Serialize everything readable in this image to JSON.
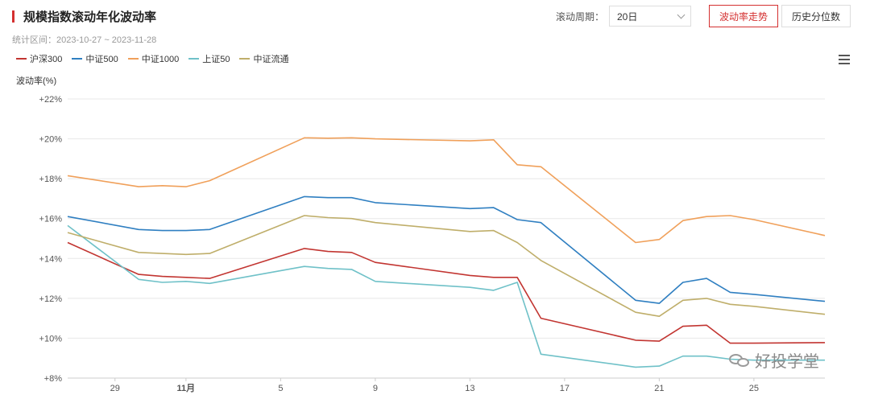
{
  "header": {
    "title": "规模指数滚动年化波动率",
    "subtitle": "统计区间：2023-10-27 ~ 2023-11-28"
  },
  "controls": {
    "period_label": "滚动周期：",
    "period_value": "20日",
    "trend_button": "波动率走势",
    "percentile_button": "历史分位数"
  },
  "watermark": {
    "text": "好投学堂",
    "icon": "wechat-icon"
  },
  "chart_data": {
    "type": "line",
    "ylabel": "波动率(%)",
    "ylim": [
      8,
      22
    ],
    "y_ticks": [
      8,
      10,
      12,
      14,
      16,
      18,
      20,
      22
    ],
    "y_tick_labels": [
      "+8%",
      "+10%",
      "+12%",
      "+14%",
      "+16%",
      "+18%",
      "+20%",
      "+22%"
    ],
    "x_ticks": [
      "29",
      "11月",
      "5",
      "9",
      "13",
      "17",
      "21",
      "25"
    ],
    "x_tick_days": [
      2,
      5,
      9,
      13,
      17,
      21,
      25,
      29
    ],
    "x_days": [
      0,
      3,
      4,
      5,
      6,
      10,
      11,
      12,
      13,
      17,
      18,
      19,
      20,
      24,
      25,
      26,
      27,
      28,
      29,
      32
    ],
    "x_first_date": "2023-10-27",
    "grid": true,
    "legend_position": "top-left",
    "series": [
      {
        "name": "沪深300",
        "color": "#c23531",
        "values": [
          14.8,
          13.2,
          13.1,
          13.05,
          13.0,
          14.5,
          14.35,
          14.3,
          13.8,
          13.15,
          13.05,
          13.05,
          11.0,
          9.9,
          9.85,
          10.6,
          10.65,
          9.75,
          9.75,
          9.78
        ]
      },
      {
        "name": "中证500",
        "color": "#2f7fc1",
        "values": [
          16.1,
          15.45,
          15.4,
          15.4,
          15.45,
          17.1,
          17.05,
          17.05,
          16.8,
          16.5,
          16.55,
          15.95,
          15.8,
          11.9,
          11.75,
          12.8,
          13.0,
          12.3,
          12.2,
          11.85
        ]
      },
      {
        "name": "中证1000",
        "color": "#f0a05a",
        "values": [
          18.15,
          17.6,
          17.65,
          17.6,
          17.9,
          20.05,
          20.03,
          20.05,
          20.0,
          19.9,
          19.95,
          18.7,
          18.6,
          14.8,
          14.95,
          15.9,
          16.1,
          16.15,
          15.95,
          15.15
        ]
      },
      {
        "name": "上证50",
        "color": "#6fc1c8",
        "values": [
          15.65,
          12.95,
          12.8,
          12.85,
          12.75,
          13.6,
          13.5,
          13.45,
          12.85,
          12.55,
          12.4,
          12.8,
          9.2,
          8.55,
          8.6,
          9.1,
          9.1,
          8.95,
          8.9,
          8.9
        ]
      },
      {
        "name": "中证流通",
        "color": "#bfae6a",
        "values": [
          15.3,
          14.3,
          14.25,
          14.2,
          14.25,
          16.15,
          16.05,
          16.0,
          15.8,
          15.35,
          15.4,
          14.8,
          13.9,
          11.3,
          11.1,
          11.9,
          12.0,
          11.7,
          11.6,
          11.2
        ]
      }
    ]
  }
}
